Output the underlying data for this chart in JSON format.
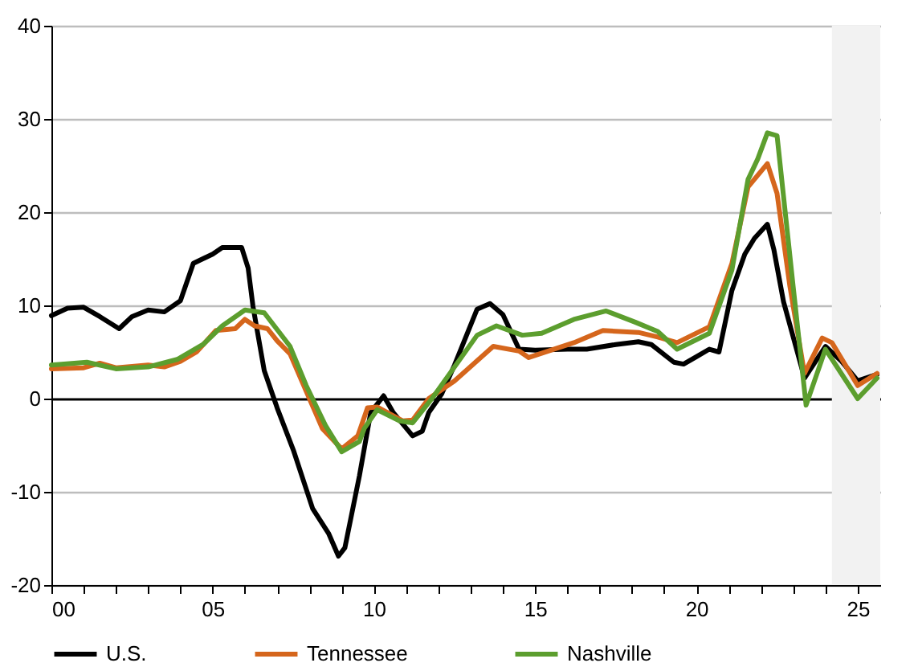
{
  "chart_data": {
    "type": "line",
    "xlim": [
      0,
      25.7
    ],
    "ylim": [
      -20,
      40
    ],
    "xticks": [
      {
        "value": 0,
        "label": "00"
      },
      {
        "value": 1,
        "label": null
      },
      {
        "value": 2,
        "label": null
      },
      {
        "value": 3,
        "label": null
      },
      {
        "value": 4,
        "label": null
      },
      {
        "value": 5,
        "label": "05"
      },
      {
        "value": 6,
        "label": null
      },
      {
        "value": 7,
        "label": null
      },
      {
        "value": 8,
        "label": null
      },
      {
        "value": 9,
        "label": null
      },
      {
        "value": 10,
        "label": "10"
      },
      {
        "value": 11,
        "label": null
      },
      {
        "value": 12,
        "label": null
      },
      {
        "value": 13,
        "label": null
      },
      {
        "value": 14,
        "label": null
      },
      {
        "value": 15,
        "label": "15"
      },
      {
        "value": 16,
        "label": null
      },
      {
        "value": 17,
        "label": null
      },
      {
        "value": 18,
        "label": null
      },
      {
        "value": 19,
        "label": null
      },
      {
        "value": 20,
        "label": "20"
      },
      {
        "value": 21,
        "label": null
      },
      {
        "value": 22,
        "label": null
      },
      {
        "value": 23,
        "label": null
      },
      {
        "value": 24,
        "label": null
      },
      {
        "value": 25,
        "label": "25"
      }
    ],
    "yticks": [
      -20,
      -10,
      0,
      10,
      20,
      30,
      40
    ],
    "grid": "y",
    "legend": "bottom",
    "line_style": "solid",
    "bands": [
      {
        "axis": "x",
        "from": 24.2,
        "to": 25.7,
        "color": "#f2f2f2"
      }
    ],
    "series": [
      {
        "name": "U.S.",
        "color": "#000000",
        "x": [
          0,
          0.5,
          1,
          1.5,
          2.1,
          2.5,
          3,
          3.5,
          4,
          4.4,
          5,
          5.3,
          5.9,
          6.1,
          6.25,
          6.6,
          7,
          7.5,
          8.1,
          8.6,
          8.9,
          9.1,
          9.55,
          9.9,
          10.3,
          10.6,
          11.2,
          11.5,
          11.7,
          12.1,
          12.5,
          13.2,
          13.6,
          14,
          14.5,
          15,
          16,
          16.6,
          17.5,
          18.2,
          18.6,
          19.3,
          19.6,
          20,
          20.4,
          20.7,
          21.1,
          21.5,
          21.8,
          22.2,
          22.4,
          22.7,
          23.35,
          24,
          24.5,
          25,
          25.6
        ],
        "values": [
          8.9,
          9.7,
          9.8,
          8.8,
          7.5,
          8.8,
          9.5,
          9.3,
          10.5,
          14.5,
          15.5,
          16.2,
          16.2,
          14,
          9.9,
          3,
          -1,
          -5.5,
          -11.8,
          -14.5,
          -16.9,
          -16,
          -8.3,
          -1.5,
          0.3,
          -1.5,
          -4,
          -3.5,
          -1.5,
          0.5,
          3.6,
          9.6,
          10.2,
          9,
          5.3,
          5.2,
          5.3,
          5.3,
          5.8,
          6.1,
          5.8,
          3.9,
          3.7,
          4.5,
          5.3,
          5,
          11.6,
          15.5,
          17.2,
          18.7,
          16,
          10.4,
          2.2,
          5.6,
          4,
          1.9,
          2.6
        ]
      },
      {
        "name": "Tennessee",
        "color": "#d5661c",
        "x": [
          0,
          1,
          1.5,
          2,
          3,
          3.5,
          4,
          4.5,
          5.1,
          5.7,
          6,
          6.3,
          6.7,
          7,
          7.4,
          7.9,
          8.4,
          9,
          9.5,
          9.8,
          10.1,
          10.9,
          11.2,
          11.7,
          12.5,
          13.7,
          14.5,
          14.8,
          16.2,
          17.1,
          18.2,
          18.8,
          19.4,
          20.4,
          21.1,
          21.6,
          22.2,
          22.5,
          22.9,
          23.35,
          23.9,
          24.2,
          25,
          25.6
        ],
        "values": [
          3.2,
          3.3,
          3.8,
          3.3,
          3.6,
          3.4,
          4,
          5,
          7.3,
          7.5,
          8.5,
          7.8,
          7.5,
          6.2,
          4.8,
          0.8,
          -3.2,
          -5.4,
          -4,
          -1,
          -0.9,
          -2.4,
          -2.3,
          0,
          1.9,
          5.6,
          5.1,
          4.4,
          6,
          7.3,
          7.1,
          6.6,
          6,
          7.7,
          14.5,
          22.7,
          25.2,
          22,
          12,
          2.7,
          6.5,
          6,
          1.4,
          2.7
        ]
      },
      {
        "name": "Nashville",
        "color": "#5c9e2e",
        "x": [
          0,
          1.1,
          2,
          3,
          3.9,
          4.7,
          5.3,
          6,
          6.6,
          7.4,
          7.9,
          8.5,
          9,
          9.55,
          9.7,
          10.1,
          10.8,
          11.2,
          11.8,
          13.2,
          13.8,
          14.6,
          15.2,
          16.2,
          17.2,
          18.1,
          18.8,
          19.4,
          20.4,
          21.1,
          21.6,
          21.9,
          22.2,
          22.5,
          23,
          23.4,
          24,
          25,
          25.6
        ],
        "values": [
          3.6,
          3.9,
          3.2,
          3.4,
          4.2,
          5.8,
          7.8,
          9.5,
          9.2,
          5.6,
          1.4,
          -2.9,
          -5.7,
          -4.6,
          -3.2,
          -1.2,
          -2.4,
          -2.6,
          0,
          6.8,
          7.8,
          6.8,
          7,
          8.5,
          9.4,
          8.2,
          7.2,
          5.3,
          7,
          13.8,
          23.5,
          25.7,
          28.5,
          28.2,
          12,
          -0.7,
          5.3,
          0,
          2.2
        ]
      }
    ]
  }
}
